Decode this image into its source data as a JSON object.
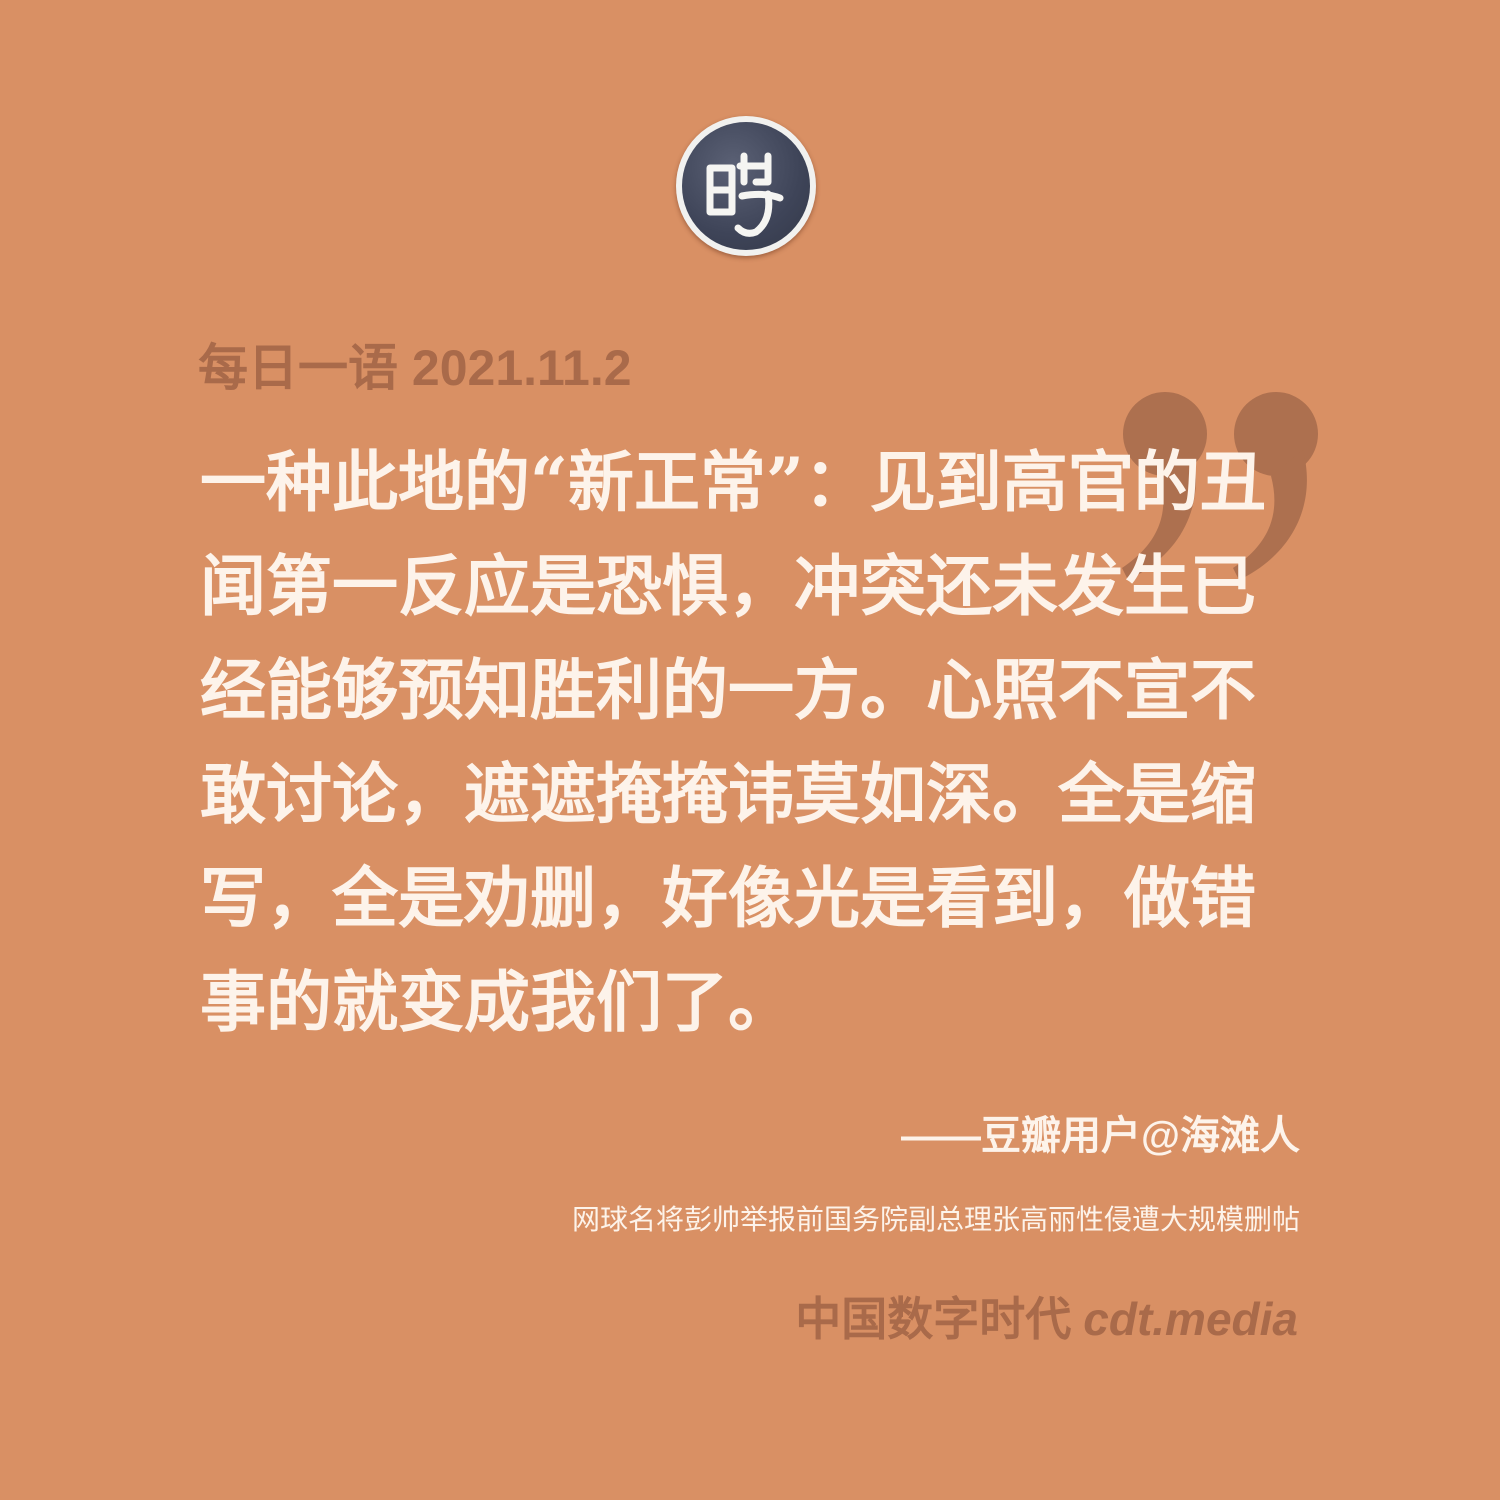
{
  "header": {
    "date_line": "每日一语 2021.11.2"
  },
  "quote": {
    "text": "一种此地的“新正常”：见到高官的丑闻第一反应是恐惧，冲突还未发生已经能够预知胜利的一方。心照不宣不敢讨论，遮遮掩掩讳莫如深。全是缩写，全是劝删，好像光是看到，做错事的就变成我们了。",
    "attribution": "——豆瓣用户@海滩人",
    "source": "网球名将彭帅举报前国务院副总理张高丽性侵遭大规模删帖"
  },
  "footer": {
    "brand": "中国数字时代",
    "site": "cdt.media"
  },
  "icons": {
    "logo": "cdt-logo-icon",
    "quote_mark": "closing-quote-icon"
  },
  "colors": {
    "background": "#d99064",
    "text_light": "#fdf3ea",
    "text_dark": "#a96a4a",
    "quote_mark": "#ad704f",
    "logo_bg": "#3e4458"
  }
}
